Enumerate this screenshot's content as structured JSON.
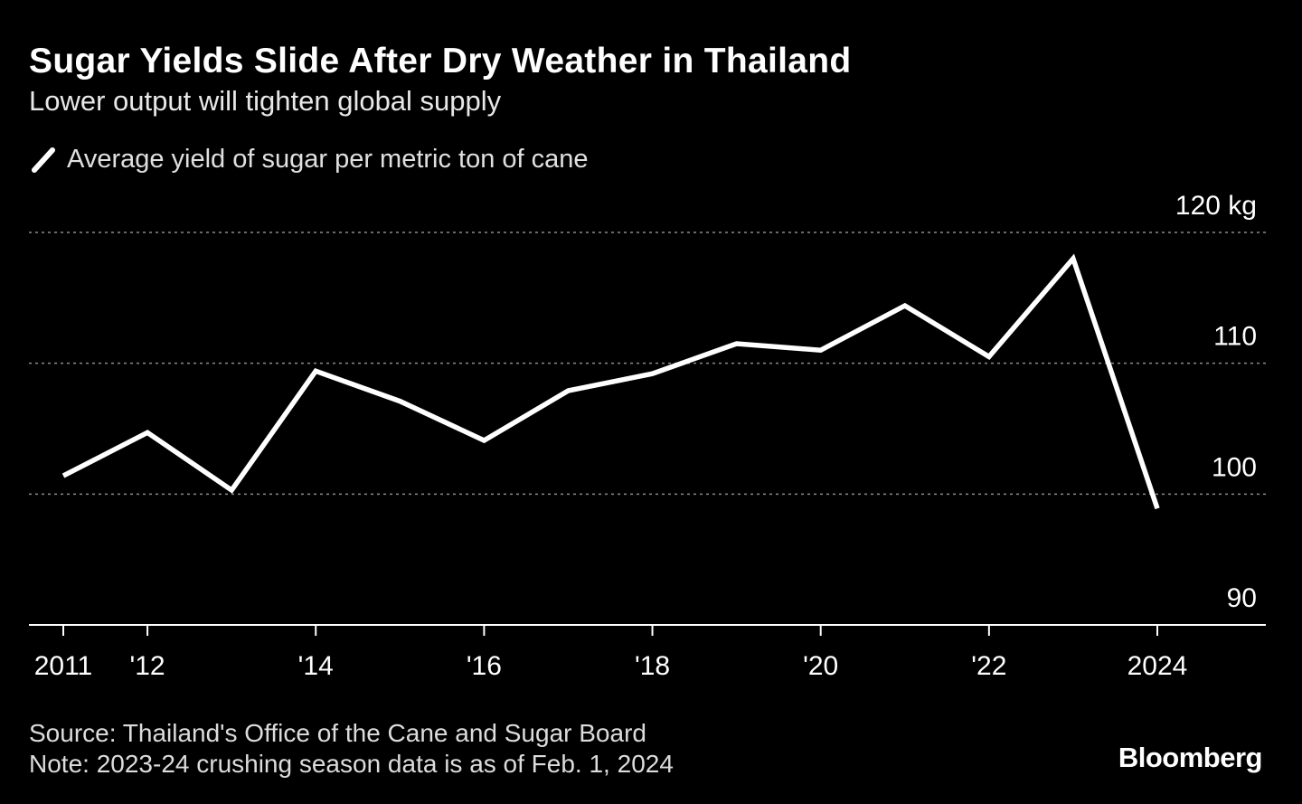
{
  "chart_data": {
    "type": "line",
    "title": "Sugar Yields Slide After Dry Weather in Thailand",
    "subtitle": "Lower output will tighten global supply",
    "legend": [
      {
        "name": "Average yield of sugar per metric ton of cane",
        "color": "#ffffff"
      }
    ],
    "x": [
      2011,
      2012,
      2013,
      2014,
      2015,
      2016,
      2017,
      2018,
      2019,
      2020,
      2021,
      2022,
      2023,
      2024
    ],
    "series": [
      {
        "name": "Average yield of sugar per metric ton of cane",
        "values": [
          101.4,
          104.7,
          100.3,
          109.4,
          107.1,
          104.1,
          107.9,
          109.2,
          111.5,
          111.0,
          114.4,
          110.5,
          118.0,
          98.9
        ]
      }
    ],
    "ylim": [
      90,
      120
    ],
    "y_ticks": [
      {
        "value": 120,
        "label": "120 kg"
      },
      {
        "value": 110,
        "label": "110"
      },
      {
        "value": 100,
        "label": "100"
      },
      {
        "value": 90,
        "label": "90"
      }
    ],
    "x_ticks": [
      {
        "value": 2011,
        "label": "2011"
      },
      {
        "value": 2012,
        "label": "'12"
      },
      {
        "value": 2014,
        "label": "'14"
      },
      {
        "value": 2016,
        "label": "'16"
      },
      {
        "value": 2018,
        "label": "'18"
      },
      {
        "value": 2020,
        "label": "'20"
      },
      {
        "value": 2022,
        "label": "'22"
      },
      {
        "value": 2024,
        "label": "2024"
      }
    ],
    "xlabel": "",
    "ylabel": "",
    "grid": true,
    "colors": {
      "background": "#000000",
      "line": "#ffffff",
      "grid": "#8c8c8c",
      "axis": "#ffffff",
      "text": "#ffffff"
    }
  },
  "footer": {
    "source": "Source: Thailand's Office of the Cane and Sugar Board",
    "note": "Note: 2023-24 crushing season data is as of Feb. 1, 2024"
  },
  "brand": "Bloomberg"
}
